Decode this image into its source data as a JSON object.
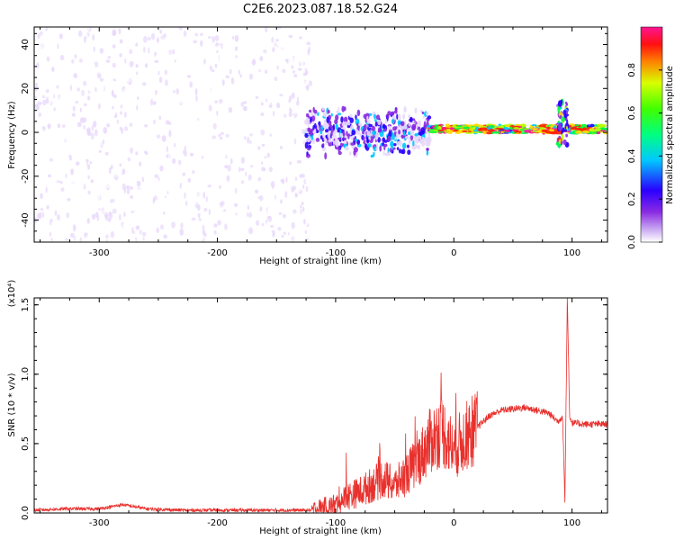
{
  "title": "C2E6.2023.087.18.52.G24",
  "colors": {
    "snr_line": "#e8312d",
    "axes": "#000000",
    "background": "#ffffff"
  },
  "chart_data": [
    {
      "type": "heatmap",
      "xlabel": "Height of straight line (km)",
      "ylabel": "Frequency (Hz)",
      "xlim": [
        -355,
        130
      ],
      "ylim": [
        -50,
        48
      ],
      "x_ticks": [
        -300,
        -200,
        -100,
        0,
        100
      ],
      "x_tick_labels": [
        "-300",
        "-200",
        "-100",
        "0",
        "100"
      ],
      "y_ticks": [
        -40,
        -20,
        0,
        20,
        40
      ],
      "y_tick_labels": [
        "-40",
        "-20",
        "0",
        "20",
        "40"
      ],
      "colorbar": {
        "label": "Normalized spectral amplitude",
        "range": [
          0.0,
          1.0
        ],
        "ticks": [
          0.0,
          0.2,
          0.4,
          0.6,
          0.8
        ],
        "tick_labels": [
          "0.0",
          "0.2",
          "0.4",
          "0.6",
          "0.8"
        ],
        "colormap": [
          "#ffffff",
          "#e8d8fb",
          "#8a2be2",
          "#2a00ff",
          "#00c8ff",
          "#00ff40",
          "#b4ff00",
          "#ffdc00",
          "#ff2000",
          "#ff1493"
        ]
      },
      "regions": [
        {
          "x_range": [
            -355,
            -120
          ],
          "freq_range": [
            -50,
            48
          ],
          "amplitude": [
            0.0,
            0.15
          ],
          "description": "broadband noise"
        },
        {
          "x_range": [
            -125,
            -20
          ],
          "freq_range": [
            -12,
            12
          ],
          "amplitude": [
            0.1,
            0.5
          ]
        },
        {
          "x_range": [
            -20,
            130
          ],
          "freq_range": [
            -3,
            3
          ],
          "amplitude": [
            0.3,
            1.0
          ],
          "center_freq": 1.5
        },
        {
          "x_range": [
            88,
            96
          ],
          "freq_range": [
            -6,
            14
          ],
          "amplitude": [
            0.2,
            0.9
          ]
        }
      ]
    },
    {
      "type": "line",
      "xlabel": "Height of straight line (km)",
      "ylabel": "SNR (10 * v/v)",
      "y_scale_label": "(x10⁴)",
      "xlim": [
        -355,
        130
      ],
      "ylim": [
        0,
        1.55
      ],
      "x_ticks": [
        -300,
        -200,
        -100,
        0,
        100
      ],
      "x_tick_labels": [
        "-300",
        "-200",
        "-100",
        "0",
        "100"
      ],
      "y_ticks": [
        0.0,
        0.5,
        1.0,
        1.5
      ],
      "y_tick_labels": [
        "0.0",
        "0.5",
        "1.0",
        "1.5"
      ],
      "series": [
        {
          "color": "#e8312d",
          "x": [
            -355,
            -330,
            -300,
            -280,
            -260,
            -230,
            -200,
            -170,
            -140,
            -120,
            -100,
            -90,
            -80,
            -70,
            -60,
            -50,
            -40,
            -30,
            -20,
            -10,
            0,
            10,
            20,
            30,
            40,
            50,
            60,
            70,
            80,
            88,
            92,
            94,
            96,
            98,
            100,
            110,
            120,
            130
          ],
          "y": [
            0.02,
            0.03,
            0.03,
            0.06,
            0.03,
            0.02,
            0.02,
            0.02,
            0.02,
            0.02,
            0.06,
            0.12,
            0.15,
            0.2,
            0.25,
            0.2,
            0.28,
            0.38,
            0.52,
            0.6,
            0.45,
            0.55,
            0.62,
            0.7,
            0.74,
            0.75,
            0.76,
            0.74,
            0.72,
            0.66,
            0.7,
            0.08,
            1.55,
            0.7,
            0.65,
            0.64,
            0.64,
            0.64
          ]
        }
      ]
    }
  ]
}
